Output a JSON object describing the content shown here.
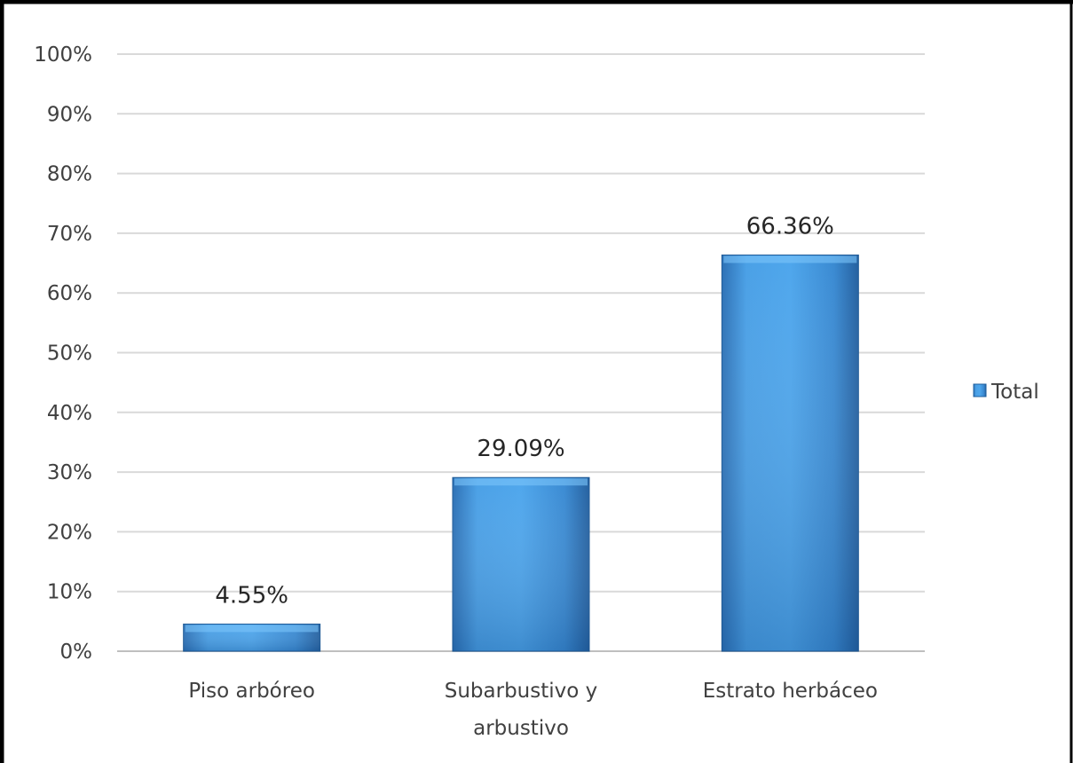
{
  "chart_data": {
    "type": "bar",
    "categories": [
      "Piso arbóreo",
      "Subarbustivo y arbustivo",
      "Estrato herbáceo"
    ],
    "category_lines": [
      [
        "Piso arbóreo"
      ],
      [
        "Subarbustivo y",
        "arbustivo"
      ],
      [
        "Estrato herbáceo"
      ]
    ],
    "series": [
      {
        "name": "Total",
        "values": [
          4.55,
          29.09,
          66.36
        ],
        "data_labels": [
          "4.55%",
          "29.09%",
          "66.36%"
        ],
        "color": "#3d8fd9"
      }
    ],
    "ylim": [
      0,
      100
    ],
    "yticks": [
      0,
      10,
      20,
      30,
      40,
      50,
      60,
      70,
      80,
      90,
      100
    ],
    "ytick_labels": [
      "0%",
      "10%",
      "20%",
      "30%",
      "40%",
      "50%",
      "60%",
      "70%",
      "80%",
      "90%",
      "100%"
    ],
    "grid": true,
    "legend_position": "right",
    "title": "",
    "xlabel": "",
    "ylabel": ""
  },
  "colors": {
    "bar": "#3d8fd9",
    "bar_light": "#5aaef0",
    "bar_dark": "#2a6db0",
    "grid": "#d9d9d9",
    "frame": "#000000"
  }
}
